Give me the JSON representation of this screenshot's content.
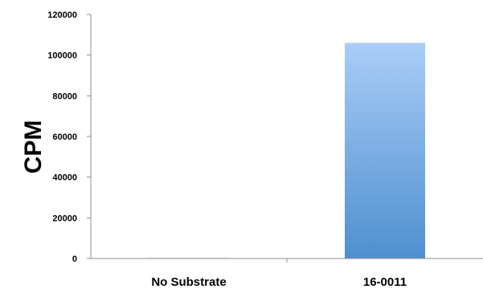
{
  "chart_data": {
    "type": "bar",
    "categories": [
      "No Substrate",
      "16-0011"
    ],
    "values": [
      300,
      106000
    ],
    "ylabel": "CPM",
    "xlabel": "",
    "ylim": [
      0,
      120000
    ],
    "yticks": [
      0,
      20000,
      40000,
      60000,
      80000,
      100000,
      120000
    ],
    "grid": false,
    "legend": "none",
    "bar_color_top": "#a9cdf7",
    "bar_color_bottom": "#4f8fcf",
    "axis_color": "#8c8c8c"
  }
}
